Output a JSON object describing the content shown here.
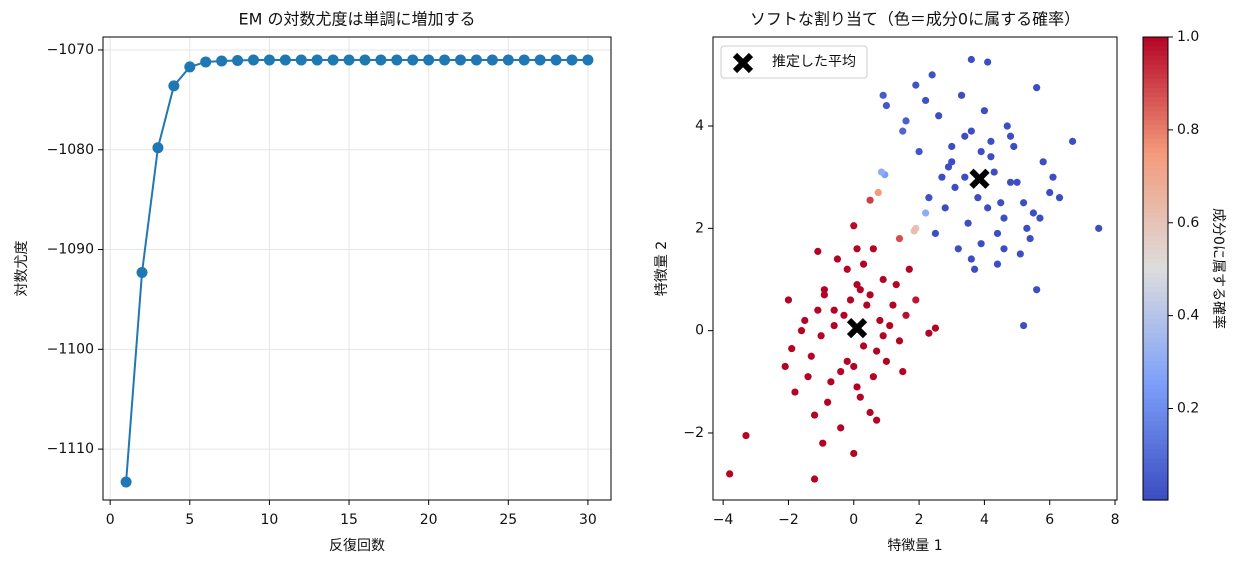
{
  "chart_data": [
    {
      "type": "line",
      "title": "EM の対数尤度は単調に増加する",
      "xlabel": "反復回数",
      "ylabel": "対数尤度",
      "color": "#1f77b4",
      "grid": true,
      "x": [
        1,
        2,
        3,
        4,
        5,
        6,
        7,
        8,
        9,
        10,
        11,
        12,
        13,
        14,
        15,
        16,
        17,
        18,
        19,
        20,
        21,
        22,
        23,
        24,
        25,
        26,
        27,
        28,
        29,
        30
      ],
      "y": [
        -1113.3,
        -1092.3,
        -1079.8,
        -1073.6,
        -1071.7,
        -1071.2,
        -1071.1,
        -1071.05,
        -1071,
        -1071,
        -1071,
        -1071,
        -1071,
        -1071,
        -1071,
        -1071,
        -1071,
        -1071,
        -1071,
        -1071,
        -1071,
        -1071,
        -1071,
        -1071,
        -1071,
        -1071,
        -1071,
        -1071,
        -1071,
        -1071
      ],
      "xlim": [
        -0.45,
        31.45
      ],
      "ylim": [
        -1115.1,
        -1068.7
      ],
      "xticks": [
        0,
        5,
        10,
        15,
        20,
        25,
        30
      ],
      "yticks": [
        {
          "value": -1110,
          "label": "−1110"
        },
        {
          "value": -1100,
          "label": "−1100"
        },
        {
          "value": -1090,
          "label": "−1090"
        },
        {
          "value": -1080,
          "label": "−1080"
        },
        {
          "value": -1070,
          "label": "−1070"
        }
      ]
    },
    {
      "type": "scatter",
      "title": "ソフトな割り当て（色＝成分0に属する確率）",
      "xlabel": "特徴量 1",
      "ylabel": "特徴量 2",
      "grid": false,
      "colormap": "coolwarm",
      "colorbar_label": "成分0に属する確率",
      "clim": [
        0.003,
        1
      ],
      "cticks": [
        0.2,
        0.4,
        0.6,
        0.8,
        {
          "value": 1,
          "label": "1.0"
        }
      ],
      "x": [
        -3.8,
        -3.3,
        -1.2,
        -0.95,
        0.0,
        0.7,
        -1.2,
        -1.8,
        2.5,
        2.3,
        -1.1,
        0.0,
        0.1,
        -1.9,
        -2.0,
        -1.5,
        -1.3,
        -0.9,
        -0.6,
        -0.4,
        -0.2,
        0.1,
        0.3,
        0.5,
        0.8,
        1.0,
        1.2,
        1.4,
        -0.7,
        -0.3,
        0.2,
        0.6,
        0.9,
        1.1,
        -1.0,
        -0.5,
        0.4,
        0.7,
        1.3,
        -1.4,
        -0.8,
        -0.1,
        0.3,
        1.6,
        -1.6,
        -0.2,
        0.5,
        0.9,
        -0.6,
        0.0,
        0.2,
        -1.1,
        1.5,
        1.7,
        -0.4,
        0.6,
        -0.9,
        0.1,
        1.9,
        -2.1,
        7.5,
        6.7,
        5.6,
        3.6,
        4.1,
        2.4,
        5.2,
        5.6,
        0.9,
        1.0,
        2.6,
        3.0,
        3.4,
        3.8,
        4.2,
        4.6,
        5.0,
        5.4,
        5.8,
        6.0,
        2.8,
        3.2,
        3.6,
        4.0,
        4.4,
        4.8,
        5.2,
        2.0,
        2.2,
        2.5,
        3.1,
        3.5,
        3.9,
        4.3,
        4.7,
        5.1,
        5.5,
        1.6,
        2.9,
        3.3,
        3.7,
        4.5,
        4.9,
        5.3,
        6.1,
        2.7,
        3.9,
        4.1,
        4.4,
        1.9,
        2.3,
        3.0,
        3.6,
        4.2,
        4.8,
        5.7,
        3.4,
        4.6,
        1.5,
        6.3,
        0.5,
        0.75,
        1.9,
        1.85,
        2.2,
        0.95,
        0.85,
        1.4
      ],
      "y": [
        -2.8,
        -2.05,
        -2.9,
        -2.2,
        -2.4,
        -1.75,
        -1.65,
        -1.2,
        0.05,
        -0.05,
        1.55,
        2.05,
        1.6,
        -0.35,
        0.6,
        0.2,
        -0.5,
        0.8,
        0.4,
        -0.8,
        1.2,
        0.9,
        -0.3,
        0.7,
        0.2,
        -0.6,
        0.5,
        -0.2,
        -1.0,
        0.3,
        -1.3,
        -0.9,
        1.0,
        0.1,
        -0.1,
        1.4,
        0.5,
        -0.4,
        0.9,
        -0.9,
        -1.4,
        0.6,
        1.3,
        0.3,
        0.0,
        -0.6,
        -1.6,
        -0.1,
        0.1,
        -0.7,
        0.8,
        0.4,
        -0.8,
        1.2,
        -1.9,
        1.6,
        0.7,
        -1.1,
        0.6,
        -0.7,
        2.0,
        3.7,
        4.75,
        5.3,
        5.25,
        5.0,
        0.1,
        0.8,
        4.6,
        4.4,
        4.2,
        3.6,
        3.0,
        2.6,
        3.4,
        2.2,
        2.9,
        1.8,
        3.3,
        2.7,
        2.4,
        1.6,
        3.9,
        4.3,
        1.3,
        3.8,
        2.5,
        3.5,
        4.5,
        1.9,
        2.8,
        2.1,
        1.7,
        3.1,
        4.0,
        1.5,
        2.3,
        4.1,
        3.2,
        4.6,
        1.2,
        2.5,
        3.6,
        2.0,
        3.0,
        3.0,
        3.5,
        2.4,
        1.9,
        4.8,
        2.6,
        3.3,
        1.4,
        3.7,
        2.9,
        2.2,
        3.8,
        1.6,
        3.9,
        2.6,
        2.55,
        2.7,
        2.0,
        1.95,
        2.3,
        3.05,
        3.1,
        1.8
      ],
      "c": [
        1,
        1,
        1,
        1,
        1,
        1,
        1,
        1,
        1,
        1,
        1,
        0.99,
        1,
        1,
        1,
        1,
        1,
        1,
        1,
        1,
        1,
        1,
        1,
        1,
        1,
        1,
        1,
        1,
        1,
        1,
        1,
        1,
        1,
        1,
        1,
        1,
        1,
        1,
        1,
        1,
        1,
        1,
        1,
        0.98,
        1,
        1,
        1,
        1,
        1,
        1,
        1,
        1,
        1,
        1,
        1,
        1,
        1,
        1,
        0.97,
        1,
        0.01,
        0.01,
        0.01,
        0.01,
        0.01,
        0.02,
        0.01,
        0.01,
        0.05,
        0.04,
        0.01,
        0.01,
        0.01,
        0.01,
        0.01,
        0.01,
        0.01,
        0.01,
        0.01,
        0.01,
        0.01,
        0.01,
        0.01,
        0.01,
        0.01,
        0.01,
        0.01,
        0.03,
        0.02,
        0.01,
        0.01,
        0.01,
        0.01,
        0.01,
        0.01,
        0.01,
        0.01,
        0.06,
        0.01,
        0.01,
        0.01,
        0.01,
        0.01,
        0.01,
        0.01,
        0.01,
        0.01,
        0.01,
        0.01,
        0.03,
        0.02,
        0.01,
        0.01,
        0.01,
        0.01,
        0.01,
        0.01,
        0.01,
        0.08,
        0.01,
        0.9,
        0.75,
        0.6,
        0.62,
        0.3,
        0.25,
        0.3,
        0.88
      ],
      "means": {
        "name": "推定した平均",
        "color": "#000000",
        "x": [
          0.1,
          3.85
        ],
        "y": [
          0.05,
          2.97
        ]
      },
      "xlim": [
        -4.31,
        8.06
      ],
      "ylim": [
        -3.31,
        5.74
      ],
      "xticks": [
        {
          "value": -4,
          "label": "−4"
        },
        {
          "value": -2,
          "label": "−2"
        },
        0,
        2,
        4,
        6,
        8
      ],
      "yticks": [
        {
          "value": -2,
          "label": "−2"
        },
        0,
        2,
        4
      ]
    }
  ]
}
